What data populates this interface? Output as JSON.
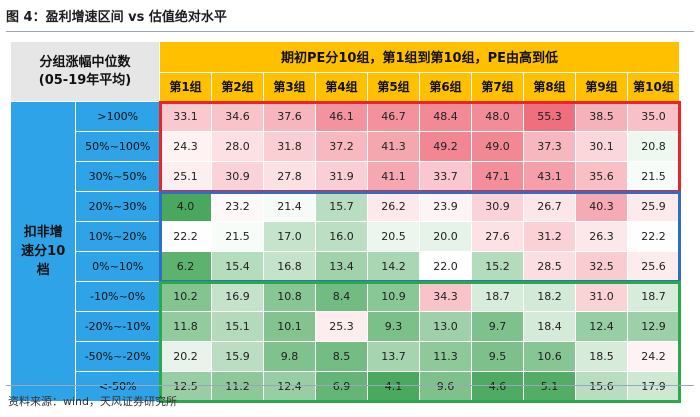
{
  "title": "图 4：盈利增速区间 vs 估值绝对水平",
  "source": "资料来源：wind，天风证券研究所",
  "corner": {
    "line1": "分组涨幅中位数",
    "line2": "(05-19年平均)"
  },
  "col_group_title": "期初PE分10组，第1组到第10组，PE由高到低",
  "row_group_title": {
    "line1": "扣非增",
    "line2": "速分10",
    "line3": "档"
  },
  "colors": {
    "header_yellow": "#ffc000",
    "row_header_blue": "#2ea3e8",
    "corner_gray": "#e6e6e6",
    "box_red": "#e8262a",
    "box_blue": "#2d6fc4",
    "box_green": "#2aa84a",
    "heat_low": "#4aa85e",
    "heat_mid": "#ffffff",
    "heat_high": "#ef6f7e"
  },
  "chart_data": {
    "type": "heatmap",
    "columns": [
      "第1组",
      "第2组",
      "第3组",
      "第4组",
      "第5组",
      "第6组",
      "第7组",
      "第8组",
      "第9组",
      "第10组"
    ],
    "rows": [
      ">100%",
      "50%~100%",
      "30%~50%",
      "20%~30%",
      "10%~20%",
      "0%~10%",
      "-10%~0%",
      "-20%~-10%",
      "-50%~-20%",
      "<-50%"
    ],
    "values": [
      [
        33.1,
        34.6,
        37.6,
        46.1,
        46.7,
        48.4,
        48.0,
        55.3,
        38.5,
        35.0
      ],
      [
        24.3,
        28.0,
        31.8,
        37.2,
        41.3,
        49.2,
        49.0,
        37.3,
        30.1,
        20.8
      ],
      [
        25.1,
        30.9,
        27.8,
        31.9,
        41.1,
        33.7,
        47.1,
        43.1,
        35.6,
        21.5
      ],
      [
        4.0,
        23.2,
        21.4,
        15.7,
        26.2,
        23.9,
        30.9,
        26.7,
        40.3,
        25.9
      ],
      [
        22.2,
        21.5,
        17.0,
        16.0,
        20.5,
        20.0,
        27.6,
        31.2,
        26.3,
        22.2
      ],
      [
        6.2,
        15.4,
        16.8,
        13.4,
        14.2,
        22.0,
        15.2,
        28.5,
        32.5,
        25.6
      ],
      [
        10.2,
        16.9,
        10.8,
        8.4,
        10.9,
        34.3,
        18.7,
        18.2,
        31.0,
        18.7
      ],
      [
        11.8,
        15.1,
        10.1,
        25.3,
        9.3,
        13.0,
        9.7,
        18.4,
        12.4,
        12.9
      ],
      [
        20.2,
        15.9,
        9.8,
        8.5,
        13.7,
        11.3,
        9.5,
        10.6,
        18.5,
        24.2
      ],
      [
        12.5,
        11.2,
        12.4,
        6.9,
        4.1,
        9.6,
        4.6,
        5.1,
        15.6,
        17.9
      ]
    ],
    "color_scale": {
      "min": 4.0,
      "mid": 22.0,
      "max": 55.3
    },
    "highlight_groups": [
      {
        "rows": [
          0,
          2
        ],
        "color": "red"
      },
      {
        "rows": [
          3,
          5
        ],
        "color": "blue"
      },
      {
        "rows": [
          6,
          9
        ],
        "color": "green"
      }
    ]
  }
}
